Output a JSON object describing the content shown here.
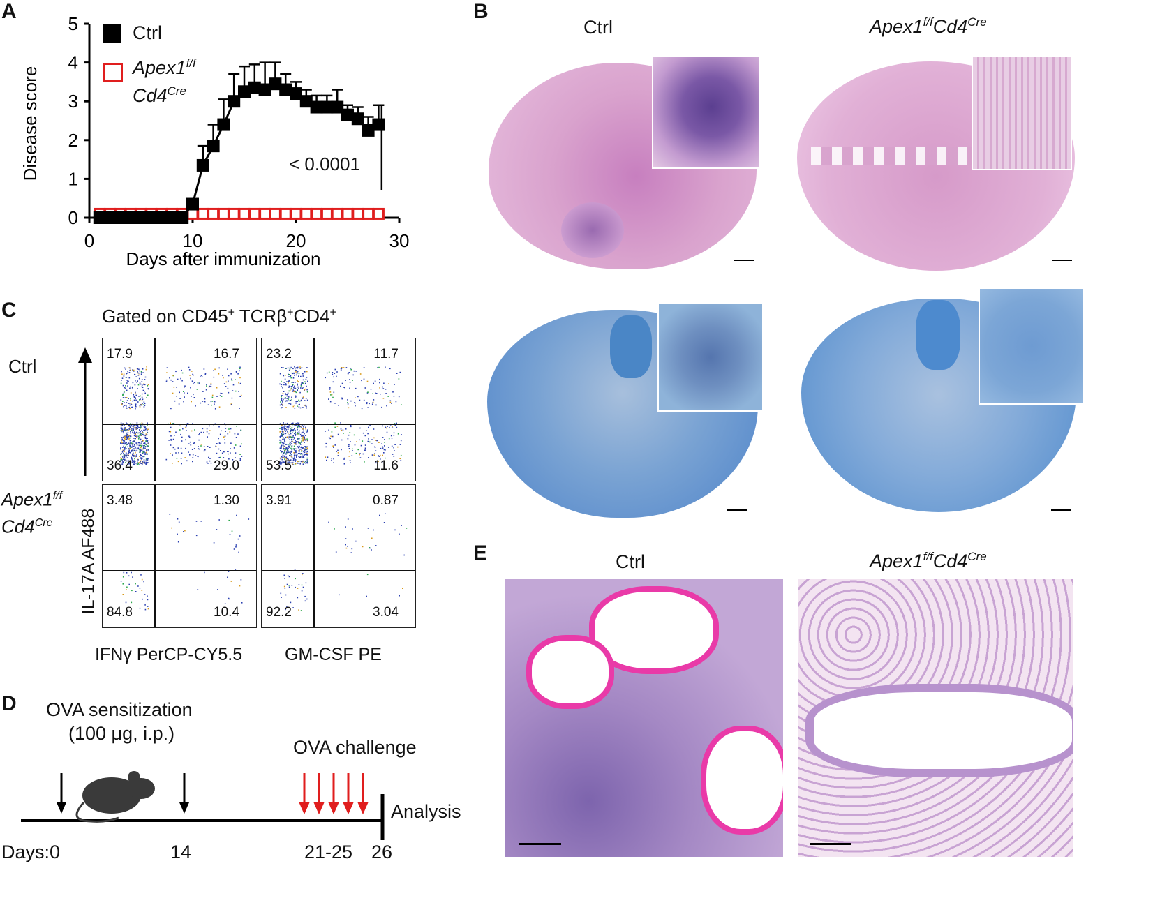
{
  "panels": {
    "A": "A",
    "B": "B",
    "C": "C",
    "D": "D",
    "E": "E"
  },
  "chart_data": {
    "type": "line",
    "xlabel": "Days after immunization",
    "ylabel": "Disease score",
    "xlim": [
      0,
      30
    ],
    "ylim": [
      0,
      5
    ],
    "xticks": [
      0,
      10,
      20,
      30
    ],
    "yticks": [
      0,
      1,
      2,
      3,
      4,
      5
    ],
    "grid": false,
    "legend_position": "top-left",
    "annotation": "< 0.0001",
    "series": [
      {
        "name": "Ctrl",
        "color": "#000000",
        "marker": "filled-square",
        "x": [
          1,
          2,
          3,
          4,
          5,
          6,
          7,
          8,
          9,
          10,
          11,
          12,
          13,
          14,
          15,
          16,
          17,
          18,
          19,
          20,
          21,
          22,
          23,
          24,
          25,
          26,
          27,
          28
        ],
        "y": [
          0,
          0,
          0,
          0,
          0,
          0,
          0,
          0,
          0,
          0.35,
          1.35,
          1.85,
          2.4,
          3.0,
          3.25,
          3.35,
          3.3,
          3.45,
          3.3,
          3.2,
          3.0,
          2.85,
          2.85,
          2.85,
          2.65,
          2.55,
          2.25,
          2.4
        ],
        "err": [
          0,
          0,
          0,
          0,
          0,
          0,
          0,
          0,
          0,
          0.1,
          0.5,
          0.55,
          0.65,
          0.7,
          0.65,
          0.6,
          0.7,
          0.55,
          0.4,
          0.3,
          0.3,
          0.3,
          0.3,
          0.45,
          0.25,
          0.3,
          0.35,
          0.5
        ]
      },
      {
        "name_line1": "Apex1",
        "name_sup1": "f/f",
        "name_line2": "Cd4",
        "name_sup2": "Cre",
        "color": "#e01e1e",
        "marker": "open-square",
        "x": [
          1,
          2,
          3,
          4,
          5,
          6,
          7,
          8,
          9,
          10,
          11,
          12,
          13,
          14,
          15,
          16,
          17,
          18,
          19,
          20,
          21,
          22,
          23,
          24,
          25,
          26,
          27,
          28
        ],
        "y": [
          0.1,
          0.1,
          0.1,
          0.1,
          0.1,
          0.1,
          0.1,
          0.1,
          0.1,
          0.1,
          0.1,
          0.1,
          0.1,
          0.1,
          0.1,
          0.1,
          0.1,
          0.1,
          0.1,
          0.1,
          0.1,
          0.1,
          0.1,
          0.1,
          0.1,
          0.1,
          0.1,
          0.1
        ]
      }
    ]
  },
  "panelB": {
    "ctrl": "Ctrl",
    "ko_main": "Apex1",
    "ko_sup1": "f/f",
    "ko_mid": "Cd4",
    "ko_sup2": "Cre"
  },
  "panelC": {
    "gated_pre": "Gated on CD45",
    "gated_sup1": "+",
    "gated_mid": " TCRβ",
    "gated_sup2": "+",
    "gated_cd4": "CD4",
    "gated_sup3": "+",
    "row1": "Ctrl",
    "row2_l1": "Apex1",
    "row2_s1": "f/f",
    "row2_l2": "Cd4",
    "row2_s2": "Cre",
    "ylabel": "IL-17A AF488",
    "xlabel1": "IFNγ PerCP-CY5.5",
    "xlabel2": "GM-CSF PE",
    "plots": [
      {
        "tl": "17.9",
        "tr": "16.7",
        "bl": "36.4",
        "br": "29.0"
      },
      {
        "tl": "23.2",
        "tr": "11.7",
        "bl": "53.5",
        "br": "11.6"
      },
      {
        "tl": "3.48",
        "tr": "1.30",
        "bl": "84.8",
        "br": "10.4"
      },
      {
        "tl": "3.91",
        "tr": "0.87",
        "bl": "92.2",
        "br": "3.04"
      }
    ]
  },
  "panelD": {
    "sens1": "OVA sensitization",
    "sens2": "(100 μg, i.p.)",
    "challenge": "OVA challenge",
    "analysis": "Analysis",
    "d0": "Days:0",
    "d14": "14",
    "d21": "21-25",
    "d26": "26"
  },
  "panelE": {
    "ctrl": "Ctrl",
    "ko_main": "Apex1",
    "ko_sup1": "f/f",
    "ko_mid": "Cd4",
    "ko_sup2": "Cre"
  },
  "colors": {
    "he": "#d79ac8",
    "lfb": "#5f95cf",
    "pas": "#e93aa8",
    "ctrl": "#000000",
    "ko": "#e01e1e"
  }
}
